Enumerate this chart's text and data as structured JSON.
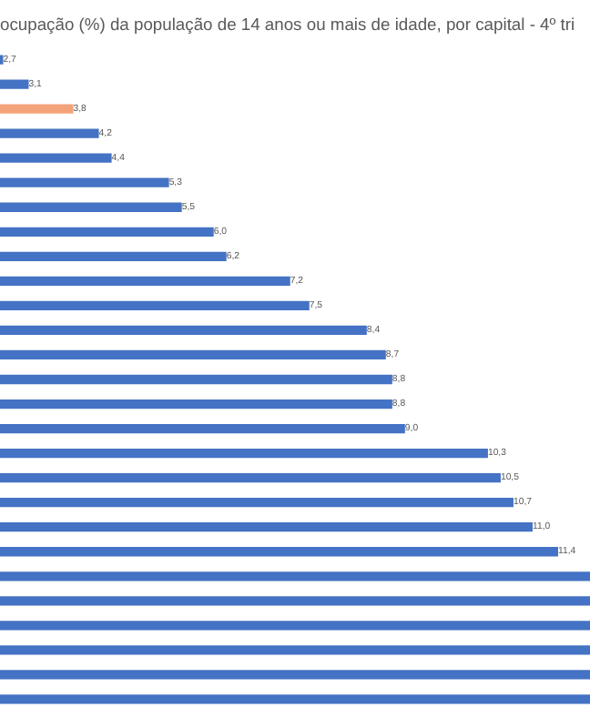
{
  "chart_data": {
    "type": "bar",
    "orientation": "horizontal",
    "title": "ocupação (%) da população de 14 anos ou mais de idade, por capital - 4º tri",
    "categories": [
      null,
      null,
      null,
      null,
      null,
      null,
      null,
      null,
      null,
      null,
      null,
      null,
      null,
      null,
      null,
      null,
      null,
      null,
      null,
      null,
      null,
      null,
      null,
      null,
      null,
      null,
      null
    ],
    "values": [
      2.7,
      3.1,
      3.8,
      4.2,
      4.4,
      5.3,
      5.5,
      6.0,
      6.2,
      7.2,
      7.5,
      8.4,
      8.7,
      8.8,
      8.8,
      9.0,
      10.3,
      10.5,
      10.7,
      11.0,
      11.4,
      11.9,
      11.9,
      11.9,
      11.9,
      11.9,
      11.9
    ],
    "value_labels": [
      "2,7",
      "3,1",
      "3,8",
      "4,2",
      "4,4",
      "5,3",
      "5,5",
      "6,0",
      "6,2",
      "7,2",
      "7,5",
      "8,4",
      "8,7",
      "8,8",
      "8,8",
      "9,0",
      "10,3",
      "10,5",
      "10,7",
      "11,0",
      "11,4",
      null,
      null,
      null,
      null,
      null,
      null
    ],
    "colors": [
      "#4472c4",
      "#4472c4",
      "#f4a27a",
      "#4472c4",
      "#4472c4",
      "#4472c4",
      "#4472c4",
      "#4472c4",
      "#4472c4",
      "#4472c4",
      "#4472c4",
      "#4472c4",
      "#4472c4",
      "#4472c4",
      "#4472c4",
      "#4472c4",
      "#4472c4",
      "#4472c4",
      "#4472c4",
      "#4472c4",
      "#4472c4",
      "#4472c4",
      "#4472c4",
      "#4472c4",
      "#4472c4",
      "#4472c4",
      "#4472c4"
    ],
    "xlim": [
      2.65,
      11.9
    ]
  }
}
